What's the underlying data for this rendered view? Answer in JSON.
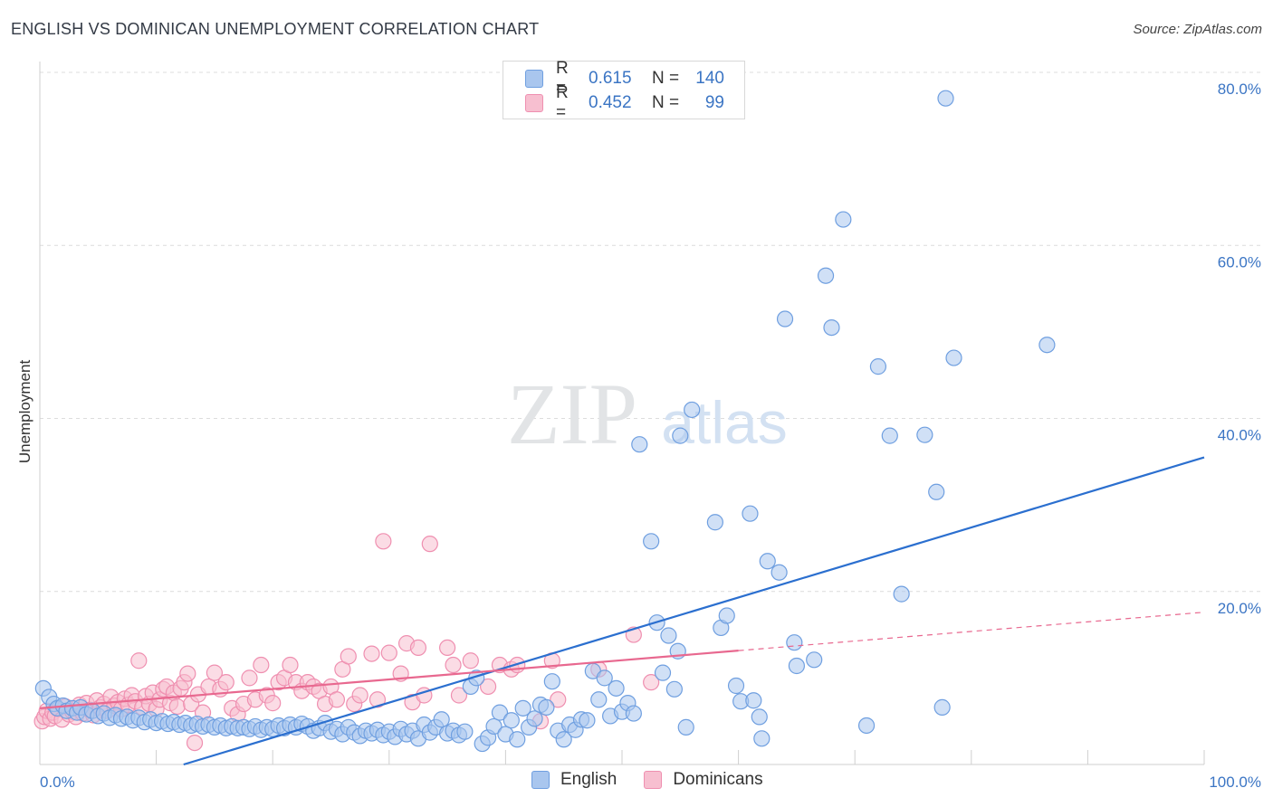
{
  "title": "ENGLISH VS DOMINICAN UNEMPLOYMENT CORRELATION CHART",
  "source": "Source: ZipAtlas.com",
  "watermark": {
    "zip": "ZIP",
    "atlas": "atlas"
  },
  "legend": {
    "rows": [
      {
        "r_label": "R =",
        "r_value": "0.615",
        "n_label": "N =",
        "n_value": "140",
        "color": "#a9c6ee",
        "border": "#6f9fe0"
      },
      {
        "r_label": "R =",
        "r_value": "0.452",
        "n_label": "N =",
        "n_value": "99",
        "color": "#f7bfd0",
        "border": "#ef8fb0"
      }
    ]
  },
  "bottom_legend": [
    {
      "label": "English",
      "color": "#a9c6ee",
      "border": "#6f9fe0"
    },
    {
      "label": "Dominicans",
      "color": "#f7bfd0",
      "border": "#ef8fb0"
    }
  ],
  "chart_data": {
    "type": "scatter",
    "title": "ENGLISH VS DOMINICAN UNEMPLOYMENT CORRELATION CHART",
    "ylabel": "Unemployment",
    "xlabel": "",
    "xlim": [
      0,
      100
    ],
    "ylim": [
      0,
      80
    ],
    "x_tick_labels": [
      "0.0%",
      "100.0%"
    ],
    "y_tick_labels": [
      "20.0%",
      "40.0%",
      "60.0%",
      "80.0%"
    ],
    "y_ticks": [
      20,
      40,
      60,
      80
    ],
    "grid": true,
    "legend_position": "top-center",
    "series": [
      {
        "name": "English",
        "color": "#6f9fe0",
        "fill": "#a9c6ee",
        "trend": {
          "x": [
            0,
            100
          ],
          "y": [
            -5.0,
            35.5
          ],
          "color": "#2b6fcf",
          "dashed_from": null
        },
        "points": [
          [
            0.3,
            8.8
          ],
          [
            0.8,
            7.8
          ],
          [
            1.2,
            7.0
          ],
          [
            1.5,
            6.5
          ],
          [
            2.0,
            6.8
          ],
          [
            2.3,
            6.2
          ],
          [
            2.8,
            6.5
          ],
          [
            3.2,
            6.0
          ],
          [
            3.5,
            6.6
          ],
          [
            4.0,
            5.8
          ],
          [
            4.5,
            6.2
          ],
          [
            5.0,
            5.6
          ],
          [
            5.5,
            5.9
          ],
          [
            6.0,
            5.4
          ],
          [
            6.5,
            5.7
          ],
          [
            7.0,
            5.3
          ],
          [
            7.5,
            5.5
          ],
          [
            8.0,
            5.1
          ],
          [
            8.5,
            5.4
          ],
          [
            9.0,
            4.9
          ],
          [
            9.5,
            5.2
          ],
          [
            10.0,
            4.8
          ],
          [
            10.5,
            5.0
          ],
          [
            11.0,
            4.7
          ],
          [
            11.5,
            4.9
          ],
          [
            12.0,
            4.6
          ],
          [
            12.5,
            4.8
          ],
          [
            13.0,
            4.5
          ],
          [
            13.5,
            4.7
          ],
          [
            14.0,
            4.4
          ],
          [
            14.5,
            4.6
          ],
          [
            15.0,
            4.3
          ],
          [
            15.5,
            4.5
          ],
          [
            16.0,
            4.2
          ],
          [
            16.5,
            4.4
          ],
          [
            17.0,
            4.2
          ],
          [
            17.5,
            4.3
          ],
          [
            18.0,
            4.1
          ],
          [
            18.5,
            4.4
          ],
          [
            19.0,
            4.0
          ],
          [
            19.5,
            4.3
          ],
          [
            20.0,
            4.1
          ],
          [
            20.5,
            4.5
          ],
          [
            21.0,
            4.2
          ],
          [
            21.5,
            4.6
          ],
          [
            22.0,
            4.3
          ],
          [
            22.5,
            4.7
          ],
          [
            23.0,
            4.4
          ],
          [
            23.5,
            3.9
          ],
          [
            24.0,
            4.2
          ],
          [
            24.5,
            4.8
          ],
          [
            25.0,
            3.8
          ],
          [
            25.5,
            4.1
          ],
          [
            26.0,
            3.5
          ],
          [
            26.5,
            4.3
          ],
          [
            27.0,
            3.7
          ],
          [
            27.5,
            3.3
          ],
          [
            28.0,
            3.9
          ],
          [
            28.5,
            3.6
          ],
          [
            29.0,
            4.0
          ],
          [
            29.5,
            3.4
          ],
          [
            30.0,
            3.8
          ],
          [
            30.5,
            3.2
          ],
          [
            31.0,
            4.1
          ],
          [
            31.5,
            3.5
          ],
          [
            32.0,
            3.9
          ],
          [
            32.5,
            3.0
          ],
          [
            33.0,
            4.6
          ],
          [
            33.5,
            3.7
          ],
          [
            34.0,
            4.3
          ],
          [
            34.5,
            5.2
          ],
          [
            35.0,
            3.6
          ],
          [
            35.5,
            3.9
          ],
          [
            36.0,
            3.4
          ],
          [
            36.5,
            3.8
          ],
          [
            37.0,
            9.0
          ],
          [
            37.5,
            10.0
          ],
          [
            38.0,
            2.4
          ],
          [
            38.5,
            3.1
          ],
          [
            39.0,
            4.4
          ],
          [
            39.5,
            6.0
          ],
          [
            40.0,
            3.5
          ],
          [
            40.5,
            5.1
          ],
          [
            41.0,
            2.9
          ],
          [
            41.5,
            6.5
          ],
          [
            42.0,
            4.3
          ],
          [
            42.5,
            5.3
          ],
          [
            43.0,
            6.9
          ],
          [
            43.5,
            6.6
          ],
          [
            44.0,
            9.6
          ],
          [
            44.5,
            3.9
          ],
          [
            45.0,
            2.9
          ],
          [
            45.5,
            4.6
          ],
          [
            46.0,
            4.0
          ],
          [
            46.5,
            5.2
          ],
          [
            47.0,
            5.1
          ],
          [
            47.5,
            10.8
          ],
          [
            48.0,
            7.5
          ],
          [
            48.5,
            10.0
          ],
          [
            49.0,
            5.6
          ],
          [
            49.5,
            8.8
          ],
          [
            50.0,
            6.1
          ],
          [
            50.5,
            7.1
          ],
          [
            51.0,
            5.9
          ],
          [
            51.5,
            37.0
          ],
          [
            52.5,
            25.8
          ],
          [
            53.0,
            16.4
          ],
          [
            53.5,
            10.6
          ],
          [
            54.0,
            14.9
          ],
          [
            54.5,
            8.7
          ],
          [
            54.8,
            13.1
          ],
          [
            55.0,
            38.0
          ],
          [
            55.5,
            4.3
          ],
          [
            56.0,
            41.0
          ],
          [
            58.0,
            28.0
          ],
          [
            58.5,
            15.8
          ],
          [
            59.0,
            17.2
          ],
          [
            59.8,
            9.1
          ],
          [
            60.2,
            7.3
          ],
          [
            61.0,
            29.0
          ],
          [
            61.3,
            7.4
          ],
          [
            61.8,
            5.5
          ],
          [
            62.0,
            3.0
          ],
          [
            62.5,
            23.5
          ],
          [
            63.5,
            22.2
          ],
          [
            64.0,
            51.5
          ],
          [
            64.8,
            14.1
          ],
          [
            65.0,
            11.4
          ],
          [
            66.5,
            12.1
          ],
          [
            67.5,
            56.5
          ],
          [
            68.0,
            50.5
          ],
          [
            69.0,
            63.0
          ],
          [
            71.0,
            4.5
          ],
          [
            72.0,
            46.0
          ],
          [
            73.0,
            38.0
          ],
          [
            74.0,
            19.7
          ],
          [
            76.0,
            38.1
          ],
          [
            77.0,
            31.5
          ],
          [
            77.5,
            6.6
          ],
          [
            77.8,
            77.0
          ],
          [
            78.5,
            47.0
          ],
          [
            86.5,
            48.5
          ]
        ]
      },
      {
        "name": "Dominicans",
        "color": "#ef8fb0",
        "fill": "#f7bfd0",
        "trend": {
          "x": [
            0,
            100
          ],
          "y": [
            6.5,
            17.6
          ],
          "color": "#e8688f",
          "dashed_from": 60
        },
        "points": [
          [
            0.2,
            5.0
          ],
          [
            0.4,
            5.5
          ],
          [
            0.6,
            6.2
          ],
          [
            0.9,
            5.3
          ],
          [
            1.1,
            6.0
          ],
          [
            1.3,
            5.6
          ],
          [
            1.6,
            6.4
          ],
          [
            1.9,
            5.2
          ],
          [
            2.2,
            6.7
          ],
          [
            2.5,
            5.8
          ],
          [
            2.8,
            6.1
          ],
          [
            3.1,
            5.5
          ],
          [
            3.4,
            6.9
          ],
          [
            3.7,
            5.9
          ],
          [
            4.0,
            7.1
          ],
          [
            4.3,
            6.3
          ],
          [
            4.6,
            5.7
          ],
          [
            4.9,
            7.4
          ],
          [
            5.2,
            6.6
          ],
          [
            5.5,
            7.0
          ],
          [
            5.8,
            6.2
          ],
          [
            6.1,
            7.8
          ],
          [
            6.4,
            6.8
          ],
          [
            6.7,
            7.2
          ],
          [
            7.0,
            6.4
          ],
          [
            7.3,
            7.6
          ],
          [
            7.6,
            6.9
          ],
          [
            7.9,
            8.0
          ],
          [
            8.2,
            7.3
          ],
          [
            8.5,
            12.0
          ],
          [
            8.8,
            6.6
          ],
          [
            9.1,
            7.9
          ],
          [
            9.4,
            7.0
          ],
          [
            9.7,
            8.3
          ],
          [
            10.0,
            6.4
          ],
          [
            10.3,
            7.5
          ],
          [
            10.6,
            8.7
          ],
          [
            10.9,
            9.0
          ],
          [
            11.2,
            7.1
          ],
          [
            11.5,
            8.3
          ],
          [
            11.8,
            6.7
          ],
          [
            12.1,
            8.8
          ],
          [
            12.4,
            9.5
          ],
          [
            12.7,
            10.5
          ],
          [
            13.0,
            7.0
          ],
          [
            13.3,
            2.5
          ],
          [
            13.6,
            8.1
          ],
          [
            14.0,
            6.0
          ],
          [
            14.5,
            9.0
          ],
          [
            15.0,
            10.6
          ],
          [
            15.5,
            8.7
          ],
          [
            16.0,
            9.5
          ],
          [
            16.5,
            6.5
          ],
          [
            17.0,
            5.8
          ],
          [
            17.5,
            7.0
          ],
          [
            18.0,
            10.0
          ],
          [
            18.5,
            7.5
          ],
          [
            19.0,
            11.5
          ],
          [
            19.5,
            8.0
          ],
          [
            20.0,
            7.1
          ],
          [
            20.5,
            9.5
          ],
          [
            21.0,
            10.0
          ],
          [
            21.5,
            11.5
          ],
          [
            22.0,
            9.5
          ],
          [
            22.5,
            8.5
          ],
          [
            23.0,
            9.5
          ],
          [
            23.5,
            9.0
          ],
          [
            24.0,
            8.5
          ],
          [
            24.5,
            7.0
          ],
          [
            25.0,
            9.0
          ],
          [
            25.5,
            7.5
          ],
          [
            26.0,
            11.0
          ],
          [
            26.5,
            12.5
          ],
          [
            27.0,
            7.0
          ],
          [
            27.5,
            8.0
          ],
          [
            28.5,
            12.8
          ],
          [
            29.0,
            7.5
          ],
          [
            29.5,
            25.8
          ],
          [
            30.0,
            12.9
          ],
          [
            31.0,
            10.5
          ],
          [
            31.5,
            14.0
          ],
          [
            32.0,
            7.2
          ],
          [
            32.5,
            13.5
          ],
          [
            33.0,
            8.0
          ],
          [
            33.5,
            25.5
          ],
          [
            35.0,
            13.5
          ],
          [
            35.5,
            11.5
          ],
          [
            36.0,
            8.0
          ],
          [
            37.0,
            12.0
          ],
          [
            38.5,
            9.0
          ],
          [
            39.5,
            11.5
          ],
          [
            40.5,
            11.0
          ],
          [
            41.0,
            11.5
          ],
          [
            43.0,
            5.0
          ],
          [
            44.0,
            12.0
          ],
          [
            44.5,
            7.5
          ],
          [
            48.0,
            11.0
          ],
          [
            51.0,
            15.0
          ],
          [
            52.5,
            9.5
          ]
        ]
      }
    ]
  }
}
